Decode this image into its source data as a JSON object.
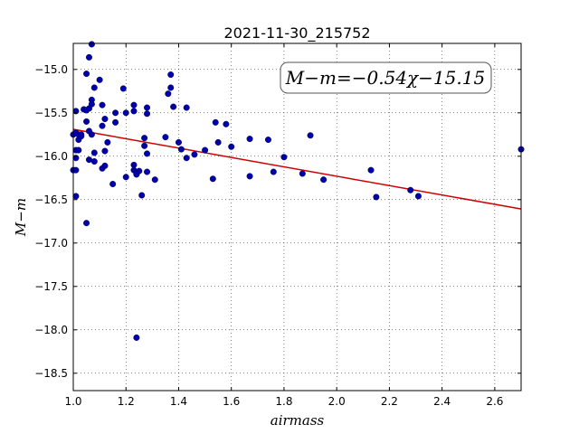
{
  "chart_data": {
    "type": "scatter",
    "title": "2021-11-30_215752",
    "xlabel": "airmass",
    "ylabel": "M−m",
    "xlim": [
      1.0,
      2.7
    ],
    "ylim": [
      -18.7,
      -14.7
    ],
    "xticks": [
      1.0,
      1.2,
      1.4,
      1.6,
      1.8,
      2.0,
      2.2,
      2.4,
      2.6
    ],
    "xtick_labels": [
      "1.0",
      "1.2",
      "1.4",
      "1.6",
      "1.8",
      "2.0",
      "2.2",
      "2.4",
      "2.6"
    ],
    "yticks": [
      -15.0,
      -15.5,
      -16.0,
      -16.5,
      -17.0,
      -17.5,
      -18.0,
      -18.5
    ],
    "ytick_labels": [
      "−15.0",
      "−15.5",
      "−16.0",
      "−16.5",
      "−17.0",
      "−17.5",
      "−18.0",
      "−18.5"
    ],
    "grid": true,
    "annotation": "M−m=−0.54χ−15.15",
    "fit": {
      "slope": -0.54,
      "intercept": -15.15,
      "color": "#cc0000"
    },
    "marker_color": "#0000aa",
    "points": [
      [
        1.0,
        -15.75
      ],
      [
        1.0,
        -16.16
      ],
      [
        1.01,
        -15.48
      ],
      [
        1.01,
        -15.73
      ],
      [
        1.01,
        -15.93
      ],
      [
        1.01,
        -16.02
      ],
      [
        1.01,
        -16.16
      ],
      [
        1.01,
        -16.46
      ],
      [
        1.02,
        -15.75
      ],
      [
        1.02,
        -15.81
      ],
      [
        1.02,
        -15.93
      ],
      [
        1.03,
        -15.75
      ],
      [
        1.03,
        -15.77
      ],
      [
        1.04,
        -15.46
      ],
      [
        1.05,
        -15.05
      ],
      [
        1.05,
        -15.47
      ],
      [
        1.05,
        -15.6
      ],
      [
        1.05,
        -16.77
      ],
      [
        1.06,
        -14.86
      ],
      [
        1.06,
        -15.45
      ],
      [
        1.06,
        -15.71
      ],
      [
        1.06,
        -16.04
      ],
      [
        1.07,
        -14.71
      ],
      [
        1.07,
        -15.35
      ],
      [
        1.07,
        -15.4
      ],
      [
        1.07,
        -15.75
      ],
      [
        1.08,
        -15.21
      ],
      [
        1.08,
        -15.96
      ],
      [
        1.08,
        -16.06
      ],
      [
        1.1,
        -15.12
      ],
      [
        1.11,
        -15.41
      ],
      [
        1.11,
        -15.65
      ],
      [
        1.11,
        -16.14
      ],
      [
        1.12,
        -15.57
      ],
      [
        1.12,
        -16.11
      ],
      [
        1.12,
        -15.94
      ],
      [
        1.13,
        -15.84
      ],
      [
        1.15,
        -16.32
      ],
      [
        1.16,
        -15.5
      ],
      [
        1.16,
        -15.61
      ],
      [
        1.19,
        -15.22
      ],
      [
        1.2,
        -15.5
      ],
      [
        1.2,
        -16.24
      ],
      [
        1.23,
        -15.41
      ],
      [
        1.23,
        -15.48
      ],
      [
        1.23,
        -16.1
      ],
      [
        1.23,
        -16.16
      ],
      [
        1.24,
        -16.2
      ],
      [
        1.24,
        -16.21
      ],
      [
        1.25,
        -16.17
      ],
      [
        1.24,
        -18.09
      ],
      [
        1.26,
        -16.45
      ],
      [
        1.27,
        -15.88
      ],
      [
        1.27,
        -15.79
      ],
      [
        1.28,
        -15.44
      ],
      [
        1.28,
        -15.51
      ],
      [
        1.28,
        -15.97
      ],
      [
        1.28,
        -16.18
      ],
      [
        1.31,
        -16.27
      ],
      [
        1.35,
        -15.78
      ],
      [
        1.36,
        -15.28
      ],
      [
        1.37,
        -15.06
      ],
      [
        1.37,
        -15.21
      ],
      [
        1.38,
        -15.43
      ],
      [
        1.4,
        -15.84
      ],
      [
        1.41,
        -15.92
      ],
      [
        1.43,
        -15.44
      ],
      [
        1.43,
        -16.02
      ],
      [
        1.46,
        -15.98
      ],
      [
        1.5,
        -15.93
      ],
      [
        1.53,
        -16.26
      ],
      [
        1.54,
        -15.61
      ],
      [
        1.55,
        -15.84
      ],
      [
        1.58,
        -15.63
      ],
      [
        1.6,
        -15.89
      ],
      [
        1.67,
        -15.8
      ],
      [
        1.67,
        -16.23
      ],
      [
        1.74,
        -15.81
      ],
      [
        1.76,
        -16.18
      ],
      [
        1.8,
        -16.01
      ],
      [
        1.87,
        -16.2
      ],
      [
        1.9,
        -15.76
      ],
      [
        1.95,
        -16.27
      ],
      [
        2.13,
        -16.16
      ],
      [
        2.15,
        -16.47
      ],
      [
        2.28,
        -16.39
      ],
      [
        2.31,
        -16.46
      ],
      [
        2.7,
        -15.92
      ]
    ]
  }
}
